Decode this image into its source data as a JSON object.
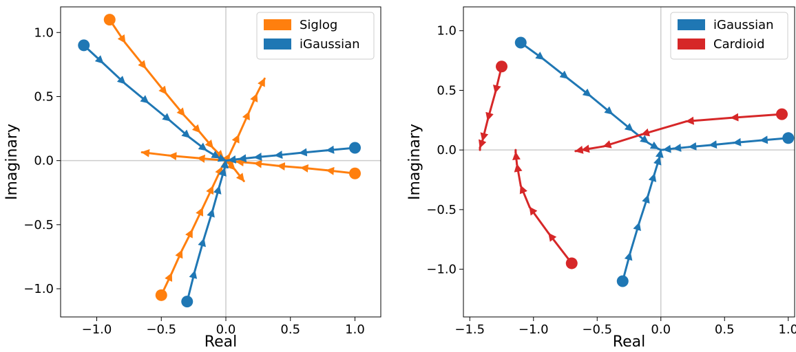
{
  "chart_data": [
    {
      "type": "line",
      "subtype": "quiver-trajectories",
      "xlabel": "Real",
      "ylabel": "Imaginary",
      "xlim": [
        -1.28,
        1.2
      ],
      "ylim": [
        -1.22,
        1.2
      ],
      "xticks": [
        -1.0,
        -0.5,
        0.0,
        0.5,
        1.0
      ],
      "xtick_labels": [
        "−1.0",
        "−0.5",
        "0.0",
        "0.5",
        "1.0"
      ],
      "yticks": [
        -1.0,
        -0.5,
        0.0,
        0.5,
        1.0
      ],
      "ytick_labels": [
        "−1.0",
        "−0.5",
        "0.0",
        "0.5",
        "1.0"
      ],
      "zero_lines": true,
      "grid": false,
      "legend": {
        "placement": "top-right",
        "entries": [
          "Siglog",
          "iGaussian"
        ]
      },
      "series": [
        {
          "name": "Siglog",
          "color": "#ff7f0e",
          "start": [
            -0.9,
            1.1
          ],
          "points": [
            [
              -0.9,
              1.1
            ],
            [
              -0.78,
              0.92
            ],
            [
              -0.62,
              0.72
            ],
            [
              -0.46,
              0.52
            ],
            [
              -0.32,
              0.35
            ],
            [
              -0.2,
              0.22
            ],
            [
              -0.1,
              0.1
            ],
            [
              -0.02,
              0.02
            ],
            [
              0.0,
              0.0
            ]
          ]
        },
        {
          "name": "Siglog",
          "color": "#ff7f0e",
          "start": [
            1.0,
            -0.1
          ],
          "points": [
            [
              1.0,
              -0.1
            ],
            [
              0.78,
              -0.075
            ],
            [
              0.58,
              -0.055
            ],
            [
              0.4,
              -0.04
            ],
            [
              0.22,
              -0.02
            ],
            [
              0.08,
              -0.008
            ],
            [
              0.0,
              0.0
            ],
            [
              -0.22,
              0.02
            ],
            [
              -0.44,
              0.04
            ],
            [
              -0.65,
              0.065
            ]
          ]
        },
        {
          "name": "Siglog",
          "color": "#ff7f0e",
          "start": [
            -0.5,
            -1.05
          ],
          "points": [
            [
              -0.5,
              -1.05
            ],
            [
              -0.42,
              -0.88
            ],
            [
              -0.34,
              -0.7
            ],
            [
              -0.26,
              -0.54
            ],
            [
              -0.18,
              -0.37
            ],
            [
              -0.1,
              -0.2
            ],
            [
              -0.03,
              -0.05
            ],
            [
              0.03,
              0.05
            ],
            [
              0.1,
              0.2
            ],
            [
              0.18,
              0.38
            ],
            [
              0.24,
              0.52
            ],
            [
              0.3,
              0.64
            ]
          ]
        },
        {
          "name": "Siglog",
          "color": "#ff7f0e",
          "start": null,
          "points": [
            [
              0.0,
              0.0
            ],
            [
              0.07,
              -0.07
            ],
            [
              0.14,
              -0.16
            ]
          ]
        },
        {
          "name": "iGaussian",
          "color": "#1f77b4",
          "start": [
            -1.1,
            0.9
          ],
          "points": [
            [
              -1.1,
              0.9
            ],
            [
              -0.95,
              0.76
            ],
            [
              -0.78,
              0.6
            ],
            [
              -0.6,
              0.45
            ],
            [
              -0.43,
              0.31
            ],
            [
              -0.28,
              0.18
            ],
            [
              -0.15,
              0.08
            ],
            [
              -0.05,
              0.02
            ],
            [
              0.0,
              0.0
            ]
          ]
        },
        {
          "name": "iGaussian",
          "color": "#1f77b4",
          "start": [
            1.0,
            0.1
          ],
          "points": [
            [
              1.0,
              0.1
            ],
            [
              0.78,
              0.08
            ],
            [
              0.57,
              0.06
            ],
            [
              0.38,
              0.04
            ],
            [
              0.22,
              0.025
            ],
            [
              0.1,
              0.012
            ],
            [
              0.02,
              0.002
            ],
            [
              0.0,
              0.0
            ]
          ]
        },
        {
          "name": "iGaussian",
          "color": "#1f77b4",
          "start": [
            -0.3,
            -1.1
          ],
          "points": [
            [
              -0.3,
              -1.1
            ],
            [
              -0.24,
              -0.86
            ],
            [
              -0.17,
              -0.61
            ],
            [
              -0.1,
              -0.38
            ],
            [
              -0.05,
              -0.2
            ],
            [
              -0.01,
              -0.06
            ],
            [
              0.0,
              0.0
            ]
          ]
        }
      ]
    },
    {
      "type": "line",
      "subtype": "quiver-trajectories",
      "xlabel": "Real",
      "ylabel": "Imaginary",
      "xlim": [
        -1.55,
        1.05
      ],
      "ylim": [
        -1.4,
        1.2
      ],
      "xticks": [
        -1.5,
        -1.0,
        -0.5,
        0.0,
        0.5,
        1.0
      ],
      "xtick_labels": [
        "−1.5",
        "−1.0",
        "−0.5",
        "0.0",
        "0.5",
        "1.0"
      ],
      "yticks": [
        -1.0,
        -0.5,
        0.0,
        0.5,
        1.0
      ],
      "ytick_labels": [
        "−1.0",
        "−0.5",
        "0.0",
        "0.5",
        "1.0"
      ],
      "zero_lines": true,
      "grid": false,
      "legend": {
        "placement": "top-right",
        "entries": [
          "iGaussian",
          "Cardioid"
        ]
      },
      "series": [
        {
          "name": "iGaussian",
          "color": "#1f77b4",
          "start": [
            -1.1,
            0.9
          ],
          "points": [
            [
              -1.1,
              0.9
            ],
            [
              -0.92,
              0.76
            ],
            [
              -0.73,
              0.6
            ],
            [
              -0.55,
              0.45
            ],
            [
              -0.38,
              0.3
            ],
            [
              -0.22,
              0.16
            ],
            [
              -0.1,
              0.06
            ],
            [
              -0.02,
              0.01
            ],
            [
              0.0,
              0.0
            ]
          ]
        },
        {
          "name": "iGaussian",
          "color": "#1f77b4",
          "start": [
            1.0,
            0.1
          ],
          "points": [
            [
              1.0,
              0.1
            ],
            [
              0.78,
              0.08
            ],
            [
              0.57,
              0.06
            ],
            [
              0.38,
              0.04
            ],
            [
              0.22,
              0.025
            ],
            [
              0.1,
              0.012
            ],
            [
              0.02,
              0.002
            ],
            [
              0.0,
              0.0
            ]
          ]
        },
        {
          "name": "iGaussian",
          "color": "#1f77b4",
          "start": [
            -0.3,
            -1.1
          ],
          "points": [
            [
              -0.3,
              -1.1
            ],
            [
              -0.24,
              -0.86
            ],
            [
              -0.17,
              -0.61
            ],
            [
              -0.1,
              -0.38
            ],
            [
              -0.05,
              -0.2
            ],
            [
              -0.01,
              -0.06
            ],
            [
              0.0,
              0.0
            ]
          ]
        },
        {
          "name": "Cardioid",
          "color": "#d62728",
          "start": [
            0.95,
            0.3
          ],
          "points": [
            [
              0.95,
              0.3
            ],
            [
              0.55,
              0.27
            ],
            [
              0.2,
              0.24
            ],
            [
              -0.15,
              0.13
            ],
            [
              -0.45,
              0.03
            ],
            [
              -0.62,
              0.0
            ],
            [
              -0.67,
              -0.01
            ]
          ]
        },
        {
          "name": "Cardioid",
          "color": "#d62728",
          "start": [
            -1.25,
            0.7
          ],
          "points": [
            [
              -1.25,
              0.7
            ],
            [
              -1.3,
              0.48
            ],
            [
              -1.36,
              0.25
            ],
            [
              -1.4,
              0.08
            ],
            [
              -1.42,
              0.02
            ],
            [
              -1.42,
              0.0
            ]
          ]
        },
        {
          "name": "Cardioid",
          "color": "#d62728",
          "start": [
            -0.7,
            -0.95
          ],
          "points": [
            [
              -0.7,
              -0.95
            ],
            [
              -0.88,
              -0.7
            ],
            [
              -1.03,
              -0.48
            ],
            [
              -1.1,
              -0.3
            ],
            [
              -1.13,
              -0.12
            ],
            [
              -1.14,
              -0.02
            ],
            [
              -1.14,
              0.0
            ]
          ]
        }
      ]
    }
  ]
}
